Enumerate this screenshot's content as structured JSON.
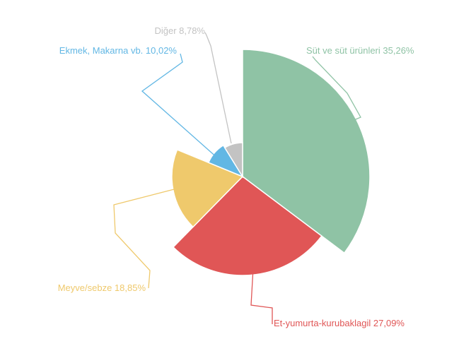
{
  "chart_data": {
    "type": "pie",
    "variant": "variable-radius",
    "slices": [
      {
        "label": "Süt ve süt ürünleri",
        "value": 35.26,
        "display": "Süt ve süt ürünleri 35,26%",
        "color": "#8fc3a5"
      },
      {
        "label": "Et-yumurta-kurubaklagil",
        "value": 27.09,
        "display": "Et-yumurta-kurubaklagil 27,09%",
        "color": "#e05656"
      },
      {
        "label": "Meyve/sebze",
        "value": 18.85,
        "display": "Meyve/sebze 18,85%",
        "color": "#efc96c"
      },
      {
        "label": "Ekmek, Makarna vb.",
        "value": 10.02,
        "display": "Ekmek, Makarna vb. 10,02%",
        "color": "#62b7e4"
      },
      {
        "label": "Diğer",
        "value": 8.78,
        "display": "Diğer 8,78%",
        "color": "#c3c3c3"
      }
    ],
    "legend": "none",
    "labels": "outside-with-leader-lines"
  }
}
